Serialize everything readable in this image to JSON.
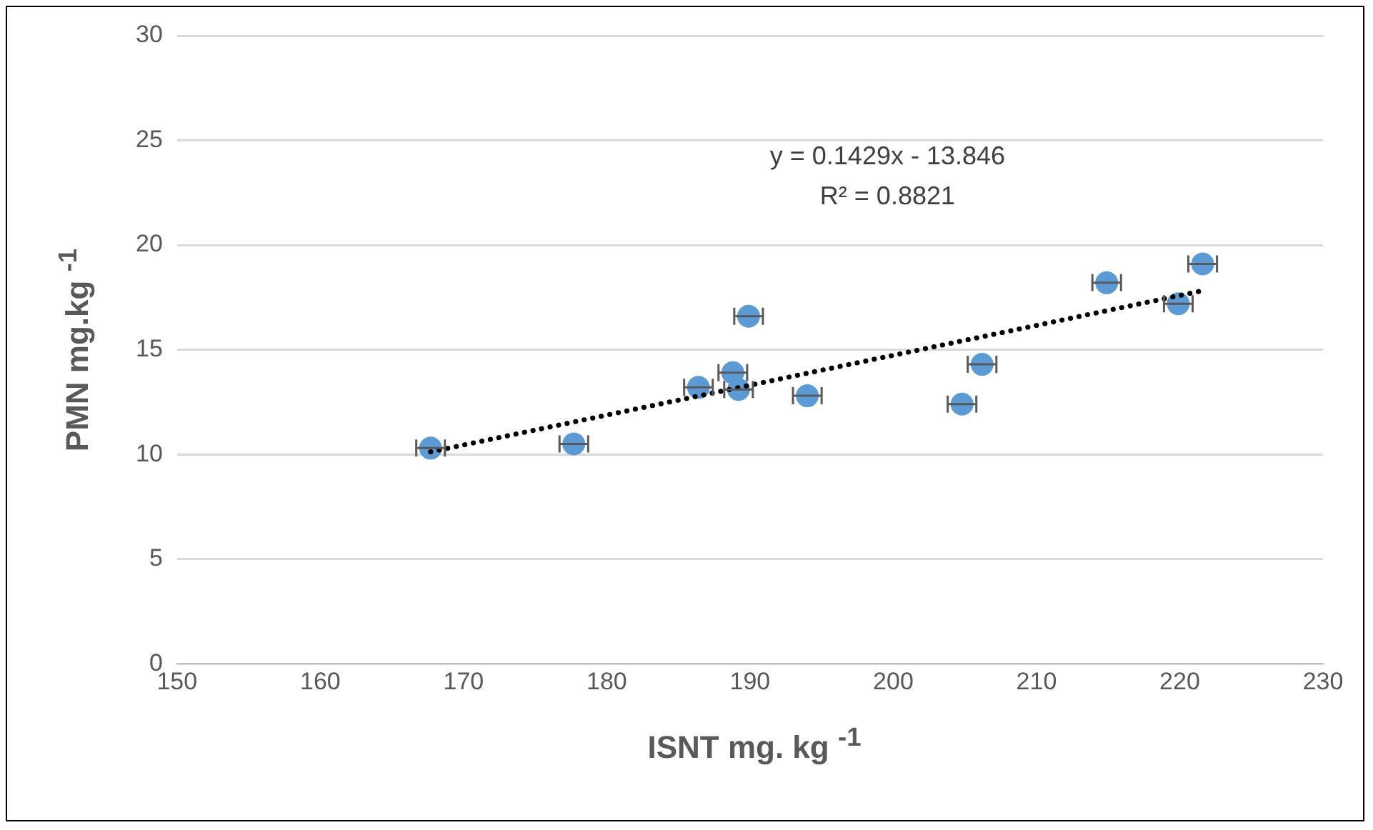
{
  "chart_data": {
    "type": "scatter",
    "xlabel": "ISNT mg. kg $^{-1}$",
    "ylabel": "PMN mg.kg $^{-1}$",
    "annotations": [
      "y = 0.1429x - 13.846",
      "R² = 0.8821"
    ],
    "xlim": [
      150,
      230
    ],
    "xticks": [
      150,
      160,
      170,
      180,
      190,
      200,
      210,
      220,
      230
    ],
    "ylim": [
      0,
      30
    ],
    "yticks": [
      0,
      5,
      10,
      15,
      20,
      25,
      30
    ],
    "grid": "y",
    "legend": false,
    "series": [
      {
        "color": "#5b9bd5",
        "marker": "circle",
        "x": [
          167.7,
          177.7,
          186.4,
          188.8,
          189.2,
          189.9,
          194.0,
          204.8,
          206.2,
          214.9,
          219.9,
          221.6
        ],
        "values": [
          10.3,
          10.5,
          13.2,
          13.9,
          13.1,
          16.6,
          12.8,
          12.4,
          14.3,
          18.2,
          17.2,
          19.1
        ],
        "xerrors": [
          1,
          1,
          1,
          1,
          1,
          1,
          1,
          1,
          1,
          1,
          1,
          1
        ]
      },
      {
        "type": "line",
        "color": "#000000",
        "marker": "none",
        "line_style": "dotted",
        "x": [
          167.7,
          221.6
        ],
        "values": [
          10.12,
          17.82
        ]
      }
    ]
  }
}
